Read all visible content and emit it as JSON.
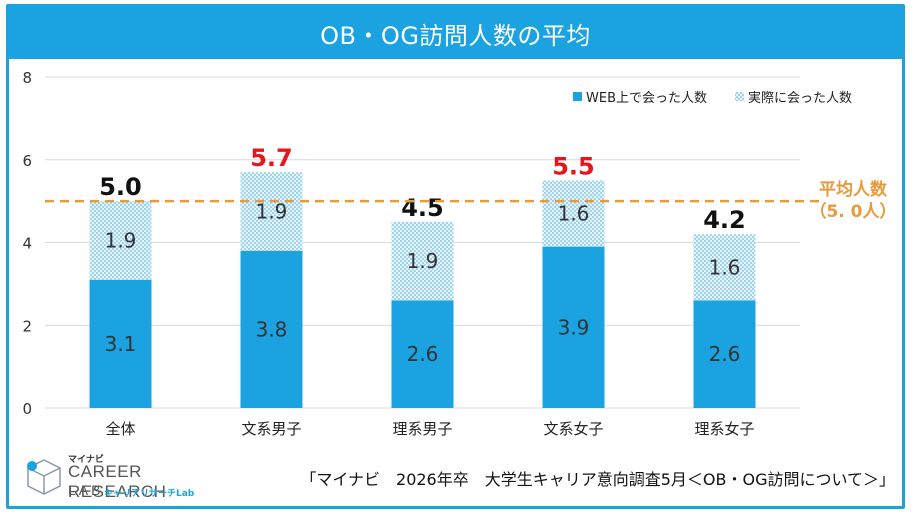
{
  "chart_data": {
    "type": "bar",
    "stacked": true,
    "title": "OB・OG訪問人数の平均",
    "categories": [
      "全体",
      "文系男子",
      "理系男子",
      "文系女子",
      "理系女子"
    ],
    "series": [
      {
        "name": "WEB上で会った人数",
        "values": [
          3.1,
          3.8,
          2.6,
          3.9,
          2.6
        ],
        "color": "#1aa3e0"
      },
      {
        "name": "実際に会った人数",
        "values": [
          1.9,
          1.9,
          1.9,
          1.6,
          1.6
        ],
        "color": "#bfe3f5"
      }
    ],
    "totals": [
      "5.0",
      "5.7",
      "4.5",
      "5.5",
      "4.2"
    ],
    "total_colors": [
      "#111111",
      "#e8151b",
      "#111111",
      "#e8151b",
      "#111111"
    ],
    "segment_labels": [
      [
        "3.1",
        "3.8",
        "2.6",
        "3.9",
        "2.6"
      ],
      [
        "1.9",
        "1.9",
        "1.9",
        "1.6",
        "1.6"
      ]
    ],
    "ylim": [
      0,
      8
    ],
    "yticks": [
      "0",
      "2",
      "4",
      "6",
      "8"
    ],
    "reference_line": {
      "value": 5.0,
      "label_line1": "平均人数",
      "label_line2": "（5. 0人）",
      "color": "#e89a3c"
    },
    "legend_position": "top-right",
    "grid": true
  },
  "footer": {
    "source": "「マイナビ　2026年卒　大学生キャリア意向調査5月＜OB・OG訪問について＞」"
  },
  "logo": {
    "top": "マイナビ",
    "main": "CAREER RESEARCH",
    "lab": "LAB",
    "sub": "キャリアリサーチLab"
  },
  "colors": {
    "accent": "#1aa3e0",
    "highlight": "#e8151b",
    "reference": "#e89a3c"
  }
}
